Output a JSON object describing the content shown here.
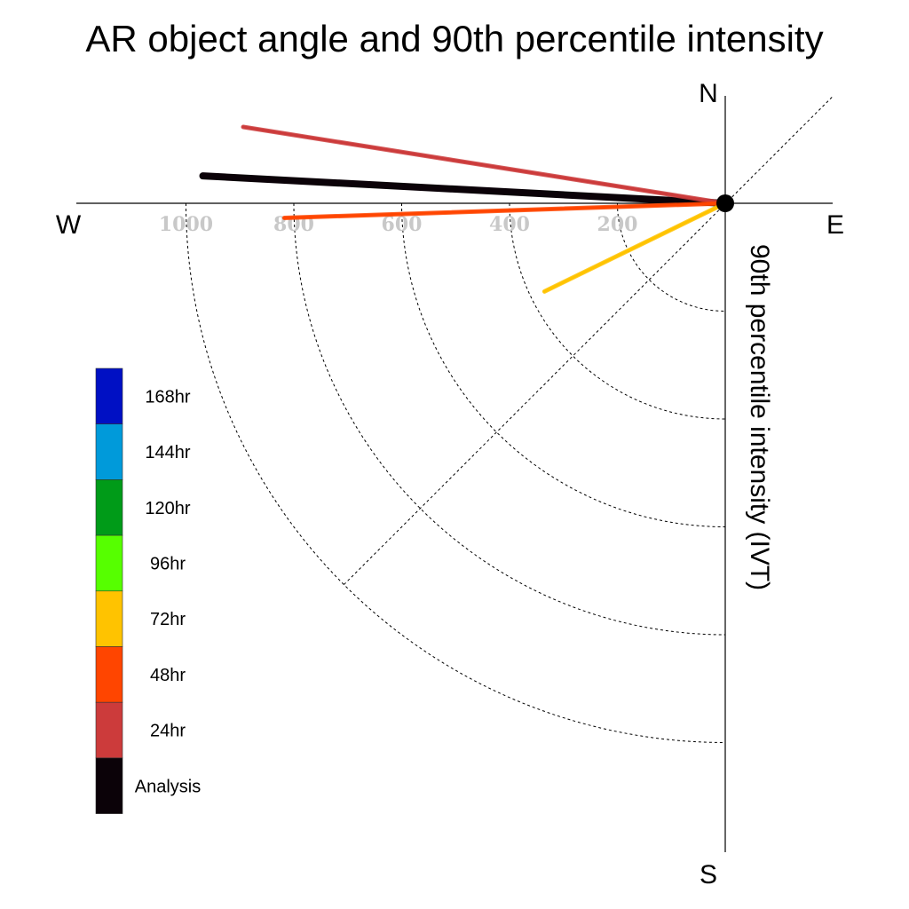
{
  "chart_data": {
    "type": "polar-vector",
    "title": "AR object angle and 90th percentile intensity",
    "radial_label": "90th percentile intensity (IVT)",
    "compass": {
      "north": "N",
      "south": "S",
      "east": "E",
      "west": "W"
    },
    "radial_ticks": [
      200,
      400,
      600,
      800,
      1000
    ],
    "radial_range": [
      0,
      1000
    ],
    "grid": true,
    "legend_placement": "left",
    "series": [
      {
        "name": "Analysis",
        "color": "#0b0208",
        "angle_deg": 87,
        "intensity": 970
      },
      {
        "name": "24hr",
        "color": "#cc3b3b",
        "angle_deg": 81,
        "intensity": 905
      },
      {
        "name": "48hr",
        "color": "#ff4500",
        "angle_deg": 91.9,
        "intensity": 818
      },
      {
        "name": "72hr",
        "color": "#ffc300",
        "angle_deg": 116,
        "intensity": 373
      }
    ],
    "legend": [
      {
        "label": "168hr",
        "color": "#0010c4"
      },
      {
        "label": "144hr",
        "color": "#009ada"
      },
      {
        "label": "120hr",
        "color": "#009b18"
      },
      {
        "label": "96hr",
        "color": "#56ff00"
      },
      {
        "label": "72hr",
        "color": "#ffc300"
      },
      {
        "label": "48hr",
        "color": "#ff4500"
      },
      {
        "label": "24hr",
        "color": "#cc3b3b"
      },
      {
        "label": "Analysis",
        "color": "#0b0208"
      }
    ]
  }
}
